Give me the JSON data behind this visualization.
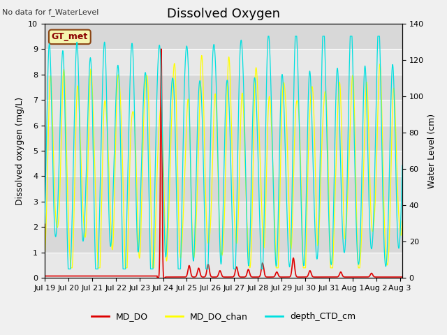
{
  "title": "Dissolved Oxygen",
  "xlabel": "",
  "ylabel_left": "Dissolved oxygen (mg/L)",
  "ylabel_right": "Water Level (cm)",
  "ylim_left": [
    0,
    10.0
  ],
  "ylim_right": [
    0,
    140
  ],
  "yticks_left": [
    0,
    1.0,
    2.0,
    3.0,
    4.0,
    5.0,
    6.0,
    7.0,
    8.0,
    9.0,
    10.0
  ],
  "yticks_right": [
    0,
    20,
    40,
    60,
    80,
    100,
    120,
    140
  ],
  "annotation_text": "No data for f_WaterLevel",
  "legend_box_label": "GT_met",
  "legend_entries": [
    "MD_DO",
    "MD_DO_chan",
    "depth_CTD_cm"
  ],
  "line_colors": [
    "#dd0000",
    "#ffff00",
    "#00e0e0"
  ],
  "background_color": "#f0f0f0",
  "title_fontsize": 13,
  "axis_label_fontsize": 9,
  "tick_fontsize": 8,
  "n_points": 8000,
  "x_start_day": 19.0,
  "x_end_day": 34.1,
  "xtick_days": [
    19,
    20,
    21,
    22,
    23,
    24,
    25,
    26,
    27,
    28,
    29,
    30,
    31,
    32,
    33,
    34
  ],
  "xtick_labels": [
    "Jul 19",
    "Jul 20",
    "Jul 21",
    "Jul 22",
    "Jul 23",
    "Jul 24",
    "Jul 25",
    "Jul 26",
    "Jul 27",
    "Jul 28",
    "Jul 29",
    "Jul 30",
    "Jul 31",
    "Aug 1",
    "Aug 2",
    "Aug 3"
  ]
}
